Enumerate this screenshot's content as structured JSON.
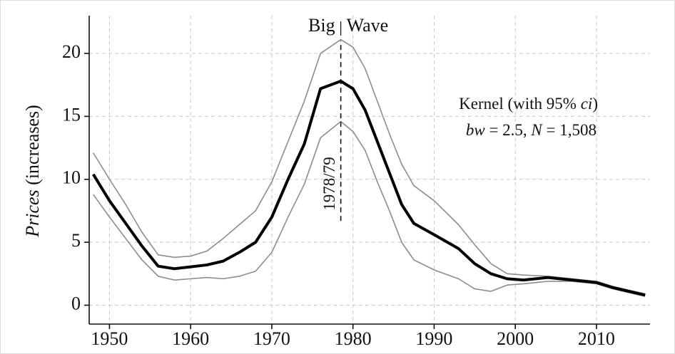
{
  "chart_data": {
    "type": "line",
    "y_label": [
      "Prices",
      " (increases)"
    ],
    "annotations": {
      "wave_left": "Big",
      "wave_right": "Wave",
      "peak_label": "1978/79",
      "kernel_line1": [
        "Kernel (with 95% ",
        "ci",
        ")"
      ],
      "kernel_line2": [
        "bw",
        " = 2.5, ",
        "N",
        " = 1,508"
      ]
    },
    "marker_line": {
      "x": 1978.5,
      "from": 6.7,
      "to": 21
    },
    "x": [
      1948,
      1950,
      1952,
      1954,
      1956,
      1958,
      1960,
      1962,
      1964,
      1966,
      1968,
      1970,
      1972,
      1974,
      1976,
      1978.5,
      1980,
      1981.5,
      1983,
      1984.5,
      1986,
      1987.5,
      1990,
      1993,
      1995,
      1997,
      1999,
      2001,
      2004,
      2007,
      2010,
      2012,
      2014,
      2016
    ],
    "series": [
      {
        "name": "Kernel",
        "color": "#000000",
        "width": 4,
        "values": [
          10.4,
          8.3,
          6.5,
          4.7,
          3.1,
          2.9,
          3.05,
          3.2,
          3.5,
          4.2,
          5.0,
          7.0,
          10,
          12.8,
          17.2,
          17.8,
          17.2,
          15.5,
          13,
          10.5,
          8.0,
          6.5,
          5.6,
          4.5,
          3.3,
          2.5,
          2.1,
          2.0,
          2.2,
          2.0,
          1.8,
          1.4,
          1.1,
          0.8
        ]
      },
      {
        "name": "Upper 95%",
        "color": "#8c8c8c",
        "width": 1.6,
        "values": [
          12.1,
          10.0,
          8.0,
          5.8,
          4.0,
          3.8,
          3.9,
          4.3,
          5.3,
          6.4,
          7.5,
          9.8,
          13,
          16.2,
          20,
          21.1,
          20.5,
          18.8,
          16.2,
          13.6,
          11.2,
          9.5,
          8.3,
          6.4,
          4.8,
          3.3,
          2.5,
          2.4,
          2.3,
          2.1,
          1.9,
          1.5,
          1.2,
          0.9
        ]
      },
      {
        "name": "Lower 95%",
        "color": "#8c8c8c",
        "width": 1.6,
        "values": [
          8.8,
          7.0,
          5.3,
          3.6,
          2.3,
          2.0,
          2.1,
          2.2,
          2.1,
          2.3,
          2.7,
          4.2,
          7,
          9.6,
          13.3,
          14.6,
          13.8,
          12.3,
          9.8,
          7.5,
          5.0,
          3.6,
          2.8,
          2.1,
          1.3,
          1.1,
          1.6,
          1.7,
          1.9,
          1.9,
          1.7,
          1.3,
          1.0,
          0.7
        ]
      }
    ],
    "xlim": [
      1947.5,
      2016.6
    ],
    "ylim": [
      -1.5,
      23
    ],
    "xticks": [
      1950,
      1960,
      1970,
      1980,
      1990,
      2000,
      2010
    ],
    "yticks": [
      0,
      5,
      10,
      15,
      20
    ],
    "grid": true
  }
}
